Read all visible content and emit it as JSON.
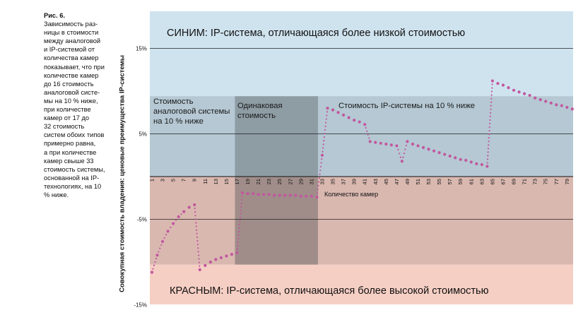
{
  "caption": {
    "title": "Рис. 6.",
    "lines": [
      "Зависимость раз-",
      "ницы в стоимости",
      "между аналоговой",
      "и IP-системой от",
      "количества камер",
      "показывает, что при",
      "количестве камер",
      "до 16 стоимость",
      "аналоговой систе-",
      "мы на 10 % ниже,",
      "при количестве",
      "камер от 17 до",
      "32 стоимость",
      "систем обоих типов",
      "примерно равна,",
      "а при количестве",
      "камер свыше 33",
      "стоимость системы,",
      "основанной на IP-",
      "технологиях, на 10",
      "% ниже."
    ]
  },
  "chart_data": {
    "type": "line",
    "title": "",
    "xlabel": "Количество камер",
    "ylabel": "Совокупная стоимость владения: ценовые преимущества IP-системы",
    "xlim": [
      1,
      80
    ],
    "ylim": [
      -15,
      19
    ],
    "y_ticks": [
      15,
      5,
      -5,
      -15
    ],
    "y_tick_labels": [
      "15%",
      "5%",
      "-5%",
      "-15%"
    ],
    "x_ticks": [
      1,
      3,
      5,
      7,
      9,
      11,
      13,
      15,
      17,
      19,
      21,
      23,
      25,
      27,
      29,
      31,
      33,
      35,
      37,
      39,
      41,
      43,
      45,
      47,
      49,
      51,
      53,
      55,
      57,
      59,
      61,
      63,
      65,
      67,
      69,
      71,
      73,
      75,
      77,
      79
    ],
    "zones": {
      "top_label": "СИНИМ: IP-система, отличающаяся более низкой стоимостью",
      "bottom_label": "КРАСНЫМ: IP-система, отличающаяся более высокой стоимостью",
      "analog_cheaper": "Стоимость аналоговой системы на 10 % ниже",
      "equal_cost": "Одинаковая стоимость",
      "ip_cheaper": "Стоимость IP-системы на 10 % ниже"
    },
    "colors": {
      "blue_zone": "#cfe3ef",
      "band_top": "#b5c8d3",
      "band_bottom": "#d9b8b0",
      "red_zone": "#f6cfc4",
      "equal_top": "#8e9ca4",
      "equal_bottom": "#a08d89",
      "marker": "#c2579f"
    },
    "series": [
      {
        "name": "",
        "x": [
          1,
          2,
          3,
          4,
          5,
          6,
          7,
          8,
          9,
          10,
          11,
          12,
          13,
          14,
          15,
          16,
          17,
          18,
          19,
          20,
          21,
          22,
          23,
          24,
          25,
          26,
          27,
          28,
          29,
          30,
          31,
          32,
          33,
          34,
          35,
          36,
          37,
          38,
          39,
          40,
          41,
          42,
          43,
          44,
          45,
          46,
          47,
          48,
          49,
          50,
          51,
          52,
          53,
          54,
          55,
          56,
          57,
          58,
          59,
          60,
          61,
          62,
          63,
          64,
          65,
          66,
          67,
          68,
          69,
          70,
          71,
          72,
          73,
          74,
          75,
          76,
          77,
          78,
          79,
          80
        ],
        "y": [
          -11.2,
          -9.2,
          -7.6,
          -6.4,
          -5.5,
          -4.7,
          -4.1,
          -3.6,
          -3.3,
          -10.9,
          -10.4,
          -10.0,
          -9.7,
          -9.5,
          -9.3,
          -9.1,
          -8.9,
          -1.9,
          -2.0,
          -2.0,
          -2.1,
          -2.1,
          -2.1,
          -2.2,
          -2.2,
          -2.2,
          -2.2,
          -2.2,
          -2.3,
          -2.3,
          -2.3,
          -2.4,
          2.5,
          8.0,
          7.8,
          7.5,
          7.2,
          6.9,
          6.6,
          6.4,
          6.1,
          4.1,
          4.0,
          3.9,
          3.8,
          3.7,
          3.6,
          1.8,
          4.1,
          3.8,
          3.6,
          3.4,
          3.2,
          3.0,
          2.8,
          2.6,
          2.4,
          2.2,
          2.0,
          1.9,
          1.7,
          1.5,
          1.4,
          1.2,
          11.2,
          10.9,
          10.7,
          10.4,
          10.1,
          9.9,
          9.7,
          9.5,
          9.2,
          9.0,
          8.8,
          8.6,
          8.4,
          8.3,
          8.1,
          7.9
        ]
      }
    ],
    "grid": "horizontal",
    "legend": "none"
  }
}
